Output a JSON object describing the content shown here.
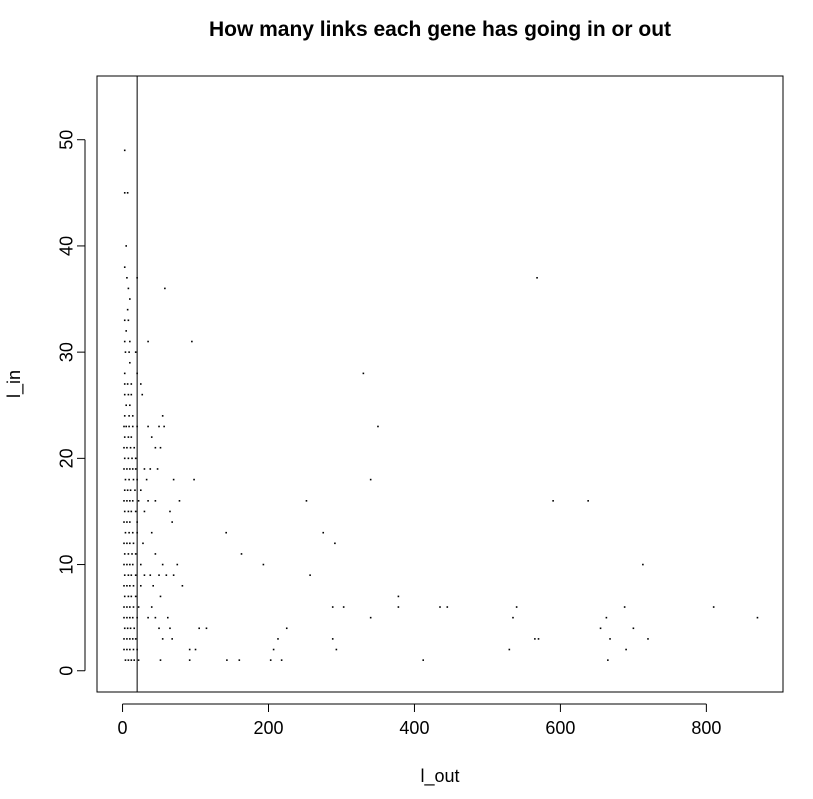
{
  "chart_data": {
    "type": "scatter",
    "title": "How many links each gene has going in or out",
    "xlabel": "l_out",
    "ylabel": "l_in",
    "xlim": [
      -35,
      905
    ],
    "ylim": [
      -2,
      56
    ],
    "xticks": [
      0,
      200,
      400,
      600,
      800
    ],
    "yticks": [
      0,
      10,
      20,
      30,
      40,
      50
    ],
    "xtick_labels": [
      "0",
      "200",
      "400",
      "600",
      "800"
    ],
    "ytick_labels": [
      "0",
      "10",
      "20",
      "30",
      "40",
      "50"
    ],
    "vline_x": 20,
    "grid": false,
    "points": [
      [
        3,
        49
      ],
      [
        3,
        45
      ],
      [
        7,
        45
      ],
      [
        5,
        40
      ],
      [
        3,
        38
      ],
      [
        6,
        37
      ],
      [
        20,
        37
      ],
      [
        8,
        36
      ],
      [
        58,
        36
      ],
      [
        10,
        35
      ],
      [
        7,
        34
      ],
      [
        3,
        33
      ],
      [
        8,
        33
      ],
      [
        5,
        32
      ],
      [
        3,
        31
      ],
      [
        10,
        31
      ],
      [
        35,
        31
      ],
      [
        95,
        31
      ],
      [
        4,
        30
      ],
      [
        9,
        30
      ],
      [
        18,
        30
      ],
      [
        10,
        29
      ],
      [
        20,
        28
      ],
      [
        3,
        28
      ],
      [
        3,
        27
      ],
      [
        7,
        27
      ],
      [
        12,
        27
      ],
      [
        25,
        27
      ],
      [
        3,
        26
      ],
      [
        8,
        26
      ],
      [
        12,
        26
      ],
      [
        27,
        26
      ],
      [
        5,
        25
      ],
      [
        10,
        25
      ],
      [
        3,
        24
      ],
      [
        9,
        24
      ],
      [
        14,
        24
      ],
      [
        55,
        24
      ],
      [
        2,
        23
      ],
      [
        5,
        23
      ],
      [
        9,
        23
      ],
      [
        14,
        23
      ],
      [
        20,
        23
      ],
      [
        35,
        23
      ],
      [
        50,
        23
      ],
      [
        57,
        23
      ],
      [
        3,
        22
      ],
      [
        8,
        22
      ],
      [
        12,
        22
      ],
      [
        40,
        22
      ],
      [
        2,
        21
      ],
      [
        6,
        21
      ],
      [
        11,
        21
      ],
      [
        16,
        21
      ],
      [
        45,
        21
      ],
      [
        52,
        21
      ],
      [
        3,
        20
      ],
      [
        8,
        20
      ],
      [
        13,
        20
      ],
      [
        18,
        20
      ],
      [
        2,
        19
      ],
      [
        6,
        19
      ],
      [
        10,
        19
      ],
      [
        14,
        19
      ],
      [
        18,
        19
      ],
      [
        30,
        19
      ],
      [
        38,
        19
      ],
      [
        48,
        19
      ],
      [
        4,
        18
      ],
      [
        9,
        18
      ],
      [
        15,
        18
      ],
      [
        20,
        18
      ],
      [
        33,
        18
      ],
      [
        70,
        18
      ],
      [
        98,
        18
      ],
      [
        3,
        17
      ],
      [
        7,
        17
      ],
      [
        11,
        17
      ],
      [
        17,
        17
      ],
      [
        25,
        17
      ],
      [
        2,
        16
      ],
      [
        6,
        16
      ],
      [
        10,
        16
      ],
      [
        14,
        16
      ],
      [
        22,
        16
      ],
      [
        35,
        16
      ],
      [
        45,
        16
      ],
      [
        78,
        16
      ],
      [
        3,
        15
      ],
      [
        8,
        15
      ],
      [
        12,
        15
      ],
      [
        18,
        15
      ],
      [
        30,
        15
      ],
      [
        65,
        15
      ],
      [
        2,
        14
      ],
      [
        6,
        14
      ],
      [
        10,
        14
      ],
      [
        20,
        14
      ],
      [
        68,
        14
      ],
      [
        4,
        13
      ],
      [
        9,
        13
      ],
      [
        14,
        13
      ],
      [
        20,
        13
      ],
      [
        40,
        13
      ],
      [
        2,
        12
      ],
      [
        6,
        12
      ],
      [
        10,
        12
      ],
      [
        15,
        12
      ],
      [
        28,
        12
      ],
      [
        3,
        11
      ],
      [
        8,
        11
      ],
      [
        13,
        11
      ],
      [
        18,
        11
      ],
      [
        45,
        11
      ],
      [
        2,
        10
      ],
      [
        6,
        10
      ],
      [
        10,
        10
      ],
      [
        14,
        10
      ],
      [
        25,
        10
      ],
      [
        55,
        10
      ],
      [
        75,
        10
      ],
      [
        3,
        9
      ],
      [
        8,
        9
      ],
      [
        12,
        9
      ],
      [
        18,
        9
      ],
      [
        30,
        9
      ],
      [
        38,
        9
      ],
      [
        50,
        9
      ],
      [
        60,
        9
      ],
      [
        70,
        9
      ],
      [
        2,
        8
      ],
      [
        6,
        8
      ],
      [
        10,
        8
      ],
      [
        15,
        8
      ],
      [
        25,
        8
      ],
      [
        42,
        8
      ],
      [
        82,
        8
      ],
      [
        3,
        7
      ],
      [
        8,
        7
      ],
      [
        12,
        7
      ],
      [
        18,
        7
      ],
      [
        52,
        7
      ],
      [
        2,
        6
      ],
      [
        6,
        6
      ],
      [
        10,
        6
      ],
      [
        15,
        6
      ],
      [
        22,
        6
      ],
      [
        40,
        6
      ],
      [
        2,
        5
      ],
      [
        6,
        5
      ],
      [
        10,
        5
      ],
      [
        14,
        5
      ],
      [
        20,
        5
      ],
      [
        35,
        5
      ],
      [
        45,
        5
      ],
      [
        62,
        5
      ],
      [
        3,
        4
      ],
      [
        7,
        4
      ],
      [
        11,
        4
      ],
      [
        16,
        4
      ],
      [
        50,
        4
      ],
      [
        65,
        4
      ],
      [
        2,
        3
      ],
      [
        6,
        3
      ],
      [
        10,
        3
      ],
      [
        14,
        3
      ],
      [
        18,
        3
      ],
      [
        55,
        3
      ],
      [
        68,
        3
      ],
      [
        2,
        2
      ],
      [
        6,
        2
      ],
      [
        10,
        2
      ],
      [
        15,
        2
      ],
      [
        20,
        2
      ],
      [
        4,
        1
      ],
      [
        8,
        1
      ],
      [
        12,
        1
      ],
      [
        16,
        1
      ],
      [
        22,
        1
      ],
      [
        52,
        1
      ],
      [
        163,
        11
      ],
      [
        142,
        13
      ],
      [
        193,
        10
      ],
      [
        252,
        16
      ],
      [
        257,
        9
      ],
      [
        275,
        13
      ],
      [
        291,
        12
      ],
      [
        330,
        28
      ],
      [
        340,
        18
      ],
      [
        350,
        23
      ],
      [
        378,
        7
      ],
      [
        378,
        6
      ],
      [
        288,
        6
      ],
      [
        303,
        6
      ],
      [
        340,
        5
      ],
      [
        288,
        3
      ],
      [
        293,
        2
      ],
      [
        435,
        6
      ],
      [
        445,
        6
      ],
      [
        540,
        6
      ],
      [
        535,
        5
      ],
      [
        568,
        37
      ],
      [
        590,
        16
      ],
      [
        638,
        16
      ],
      [
        713,
        10
      ],
      [
        688,
        6
      ],
      [
        810,
        6
      ],
      [
        870,
        5
      ],
      [
        565,
        3
      ],
      [
        570,
        3
      ],
      [
        655,
        4
      ],
      [
        700,
        4
      ],
      [
        663,
        5
      ],
      [
        668,
        3
      ],
      [
        720,
        3
      ],
      [
        690,
        2
      ],
      [
        665,
        1
      ],
      [
        530,
        2
      ],
      [
        412,
        1
      ],
      [
        92,
        2
      ],
      [
        92,
        1
      ],
      [
        100,
        2
      ],
      [
        105,
        4
      ],
      [
        115,
        4
      ],
      [
        143,
        1
      ],
      [
        160,
        1
      ],
      [
        203,
        1
      ],
      [
        207,
        2
      ],
      [
        213,
        3
      ],
      [
        218,
        1
      ],
      [
        225,
        4
      ]
    ]
  }
}
